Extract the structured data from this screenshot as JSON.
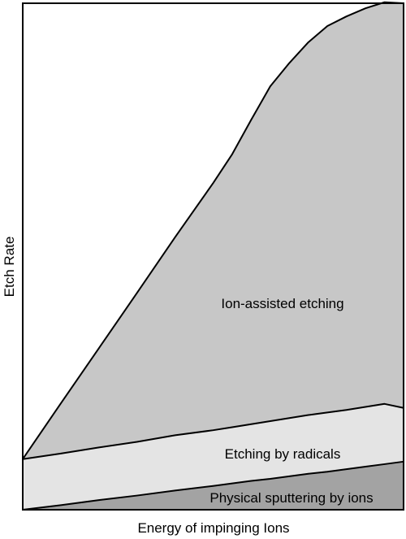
{
  "chart_data": {
    "type": "area",
    "stacked": true,
    "xlabel": "Energy of impinging Ions",
    "ylabel": "Etch Rate",
    "xlim": [
      0,
      100
    ],
    "ylim": [
      0,
      100
    ],
    "axis_ticks": false,
    "grid": false,
    "legend": "none",
    "x": [
      0,
      10,
      20,
      30,
      40,
      50,
      55,
      60,
      65,
      70,
      75,
      80,
      85,
      90,
      95,
      100
    ],
    "series": [
      {
        "name": "Physical sputtering by ions",
        "values": [
          0,
          0.9,
          1.9,
          2.8,
          3.8,
          4.7,
          5.2,
          5.7,
          6.1,
          6.6,
          7.1,
          7.5,
          8.0,
          8.5,
          9.0,
          9.5
        ],
        "color": "#a3a3a3"
      },
      {
        "name": "Etching by radicals",
        "values": [
          10.0,
          10.2,
          10.4,
          10.6,
          10.9,
          11.0,
          11.1,
          11.2,
          11.4,
          11.5,
          11.6,
          11.7,
          11.7,
          11.8,
          11.9,
          10.6
        ],
        "color": "#e4e4e4"
      },
      {
        "name": "Ion-assisted etching",
        "values": [
          0,
          9.9,
          19.6,
          29.4,
          39.1,
          48.8,
          53.9,
          60.1,
          66.1,
          70.1,
          73.6,
          76.3,
          77.7,
          78.7,
          79.3,
          79.9
        ],
        "color": "#c7c7c7"
      }
    ]
  }
}
